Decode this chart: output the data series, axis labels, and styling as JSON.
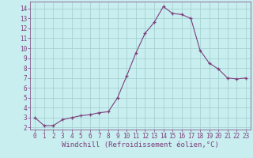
{
  "x": [
    0,
    1,
    2,
    3,
    4,
    5,
    6,
    7,
    8,
    9,
    10,
    11,
    12,
    13,
    14,
    15,
    16,
    17,
    18,
    19,
    20,
    21,
    22,
    23
  ],
  "y": [
    3.0,
    2.2,
    2.2,
    2.8,
    3.0,
    3.2,
    3.3,
    3.5,
    3.6,
    5.0,
    7.2,
    9.5,
    11.5,
    12.6,
    14.2,
    13.5,
    13.4,
    13.0,
    9.8,
    8.5,
    7.9,
    7.0,
    6.9,
    7.0
  ],
  "line_color": "#7B3F7B",
  "marker": "+",
  "marker_size": 3,
  "background_color": "#c8eef0",
  "grid_color": "#a0cccc",
  "xlabel": "Windchill (Refroidissement éolien,°C)",
  "xlabel_color": "#7B3F7B",
  "xlim": [
    -0.5,
    23.5
  ],
  "ylim": [
    1.8,
    14.7
  ],
  "yticks": [
    2,
    3,
    4,
    5,
    6,
    7,
    8,
    9,
    10,
    11,
    12,
    13,
    14
  ],
  "xticks": [
    0,
    1,
    2,
    3,
    4,
    5,
    6,
    7,
    8,
    9,
    10,
    11,
    12,
    13,
    14,
    15,
    16,
    17,
    18,
    19,
    20,
    21,
    22,
    23
  ],
  "tick_color": "#7B3F7B",
  "tick_label_fontsize": 5.5,
  "xlabel_fontsize": 6.5
}
